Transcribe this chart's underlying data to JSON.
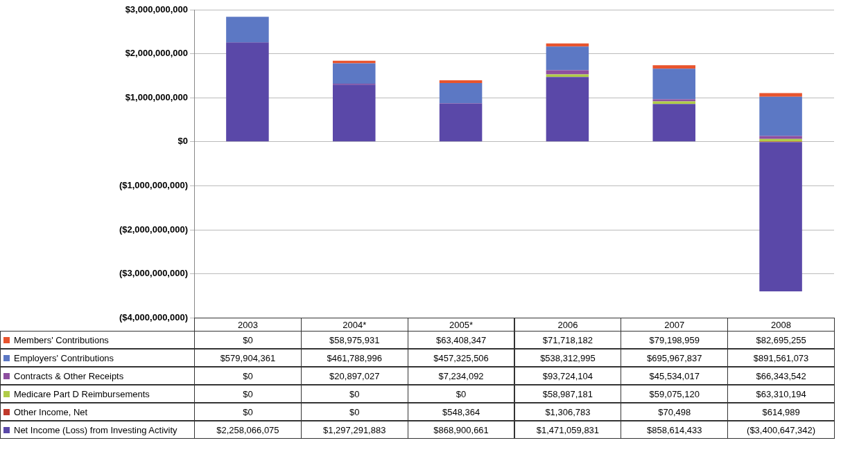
{
  "chart_data": {
    "type": "bar",
    "stacked": true,
    "categories": [
      "2003",
      "2004*",
      "2005*",
      "2006",
      "2007",
      "2008"
    ],
    "ylim": [
      -4000000000,
      3000000000
    ],
    "yticks": [
      {
        "value": -4000000000,
        "label": "($4,000,000,000)"
      },
      {
        "value": -3000000000,
        "label": "($3,000,000,000)"
      },
      {
        "value": -2000000000,
        "label": "($2,000,000,000)"
      },
      {
        "value": -1000000000,
        "label": "($1,000,000,000)"
      },
      {
        "value": 0,
        "label": "$0"
      },
      {
        "value": 1000000000,
        "label": "$1,000,000,000"
      },
      {
        "value": 2000000000,
        "label": "$2,000,000,000"
      },
      {
        "value": 3000000000,
        "label": "$3,000,000,000"
      }
    ],
    "grid": "y",
    "legend": "bottom",
    "series": [
      {
        "name": "Net Income (Loss) from Investing Activity",
        "color": "#5a48a8",
        "values": [
          2258066075,
          1297291883,
          868900661,
          1471059831,
          858614433,
          -3400647342
        ],
        "value_labels": [
          "$2,258,066,075",
          "$1,297,291,883",
          "$868,900,661",
          "$1,471,059,831",
          "$858,614,433",
          "($3,400,647,342)"
        ]
      },
      {
        "name": "Other Income, Net",
        "color": "#c0392b",
        "values": [
          0,
          0,
          548364,
          1306783,
          70498,
          614989
        ],
        "value_labels": [
          "$0",
          "$0",
          "$548,364",
          "$1,306,783",
          "$70,498",
          "$614,989"
        ]
      },
      {
        "name": "Medicare Part D Reimbursements",
        "color": "#b0cc48",
        "values": [
          0,
          0,
          0,
          58987181,
          59075120,
          63310194
        ],
        "value_labels": [
          "$0",
          "$0",
          "$0",
          "$58,987,181",
          "$59,075,120",
          "$63,310,194"
        ]
      },
      {
        "name": "Contracts & Other Receipts",
        "color": "#8e4fa0",
        "values": [
          0,
          20897027,
          7234092,
          93724104,
          45534017,
          66343542
        ],
        "value_labels": [
          "$0",
          "$20,897,027",
          "$7,234,092",
          "$93,724,104",
          "$45,534,017",
          "$66,343,542"
        ]
      },
      {
        "name": "Employers' Contributions",
        "color": "#5c78c4",
        "values": [
          579904361,
          461788996,
          457325506,
          538312995,
          695967837,
          891561073
        ],
        "value_labels": [
          "$579,904,361",
          "$461,788,996",
          "$457,325,506",
          "$538,312,995",
          "$695,967,837",
          "$891,561,073"
        ]
      },
      {
        "name": "Members' Contributions",
        "color": "#e8542e",
        "values": [
          0,
          58975931,
          63408347,
          71718182,
          79198959,
          82695255
        ],
        "value_labels": [
          "$0",
          "$58,975,931",
          "$63,408,347",
          "$71,718,182",
          "$79,198,959",
          "$82,695,255"
        ]
      }
    ]
  }
}
